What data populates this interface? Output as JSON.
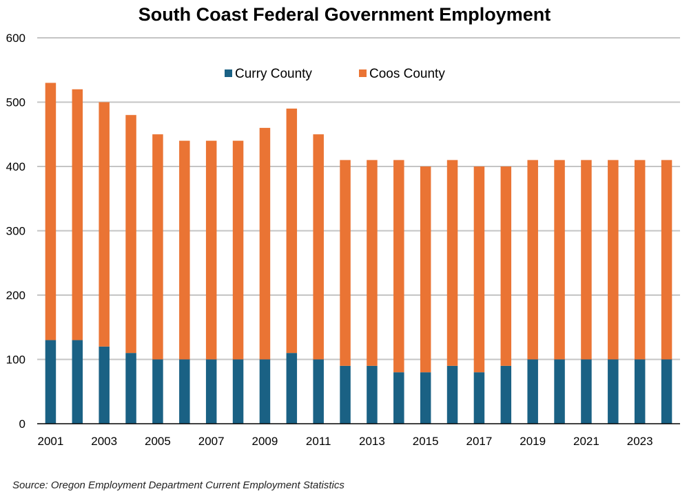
{
  "chart_data": {
    "type": "bar",
    "stacked": true,
    "title": "South Coast Federal Government Employment",
    "xlabel": "",
    "ylabel": "",
    "ylim": [
      0,
      600
    ],
    "yticks": [
      0,
      100,
      200,
      300,
      400,
      500,
      600
    ],
    "grid": true,
    "legend": "top-center",
    "categories": [
      "2001",
      "2002",
      "2003",
      "2004",
      "2005",
      "2006",
      "2007",
      "2008",
      "2009",
      "2010",
      "2011",
      "2012",
      "2013",
      "2014",
      "2015",
      "2016",
      "2017",
      "2018",
      "2019",
      "2020",
      "2021",
      "2022",
      "2023",
      "2024"
    ],
    "xtick_labels": [
      "2001",
      "2003",
      "2005",
      "2007",
      "2009",
      "2011",
      "2013",
      "2015",
      "2017",
      "2019",
      "2021",
      "2023"
    ],
    "series": [
      {
        "name": "Curry County",
        "color": "#1a6184",
        "values": [
          130,
          130,
          120,
          110,
          100,
          100,
          100,
          100,
          100,
          110,
          100,
          90,
          90,
          80,
          80,
          90,
          80,
          90,
          100,
          100,
          100,
          100,
          100,
          100
        ]
      },
      {
        "name": "Coos County",
        "color": "#ea7434",
        "values": [
          400,
          390,
          380,
          370,
          350,
          340,
          340,
          340,
          360,
          380,
          350,
          320,
          320,
          330,
          320,
          320,
          320,
          310,
          310,
          310,
          310,
          310,
          310,
          310
        ]
      }
    ]
  },
  "source": "Source: Oregon Employment Department Current Employment Statistics"
}
